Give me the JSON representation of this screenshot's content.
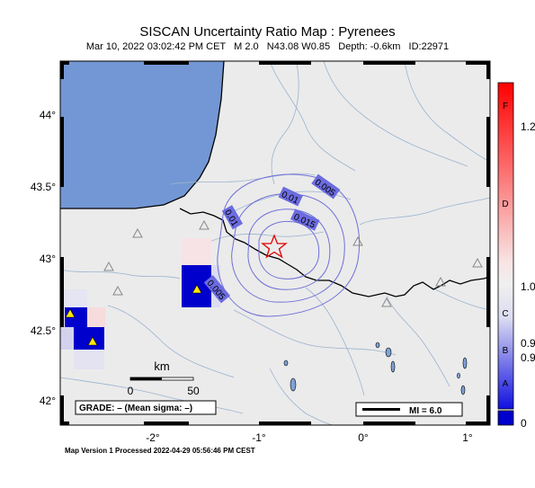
{
  "header": {
    "title": "SISCAN Uncertainty Ratio Map : Pyrenees",
    "subtitle": "Mar 10, 2022 03:02:42 PM CET   M 2.0   N43.08 W0.85   Depth: -0.6km   ID:22971"
  },
  "map": {
    "y_ticks": [
      "44°",
      "43.5°",
      "43°",
      "42.5°",
      "42°"
    ],
    "x_ticks": [
      "-2°",
      "-1°",
      "0°",
      "1°"
    ],
    "contour_labels": [
      "0.005",
      "0.01",
      "0.01",
      "0.015",
      "0.005"
    ],
    "scale_bar": {
      "unit": "km",
      "start": "0",
      "end": "50"
    },
    "grade_box": "GRADE: – (Mean sigma: –)",
    "mi_box": "MI = 6.0",
    "epicenter_icon": "star-icon",
    "station_icon": "triangle-icon"
  },
  "colorbar": {
    "left_labels": [
      "F",
      "D",
      "C",
      "B",
      "A"
    ],
    "right_labels": [
      "1.2",
      "1.0",
      "0.9",
      "0.9",
      "0"
    ],
    "colors": {
      "top": "#ff0000",
      "mid": "#f2f2f2",
      "bottom": "#0000d0"
    }
  },
  "footer": {
    "text": "Map Version 1 Processed 2022-04-29 05:56:46 PM CEST"
  }
}
